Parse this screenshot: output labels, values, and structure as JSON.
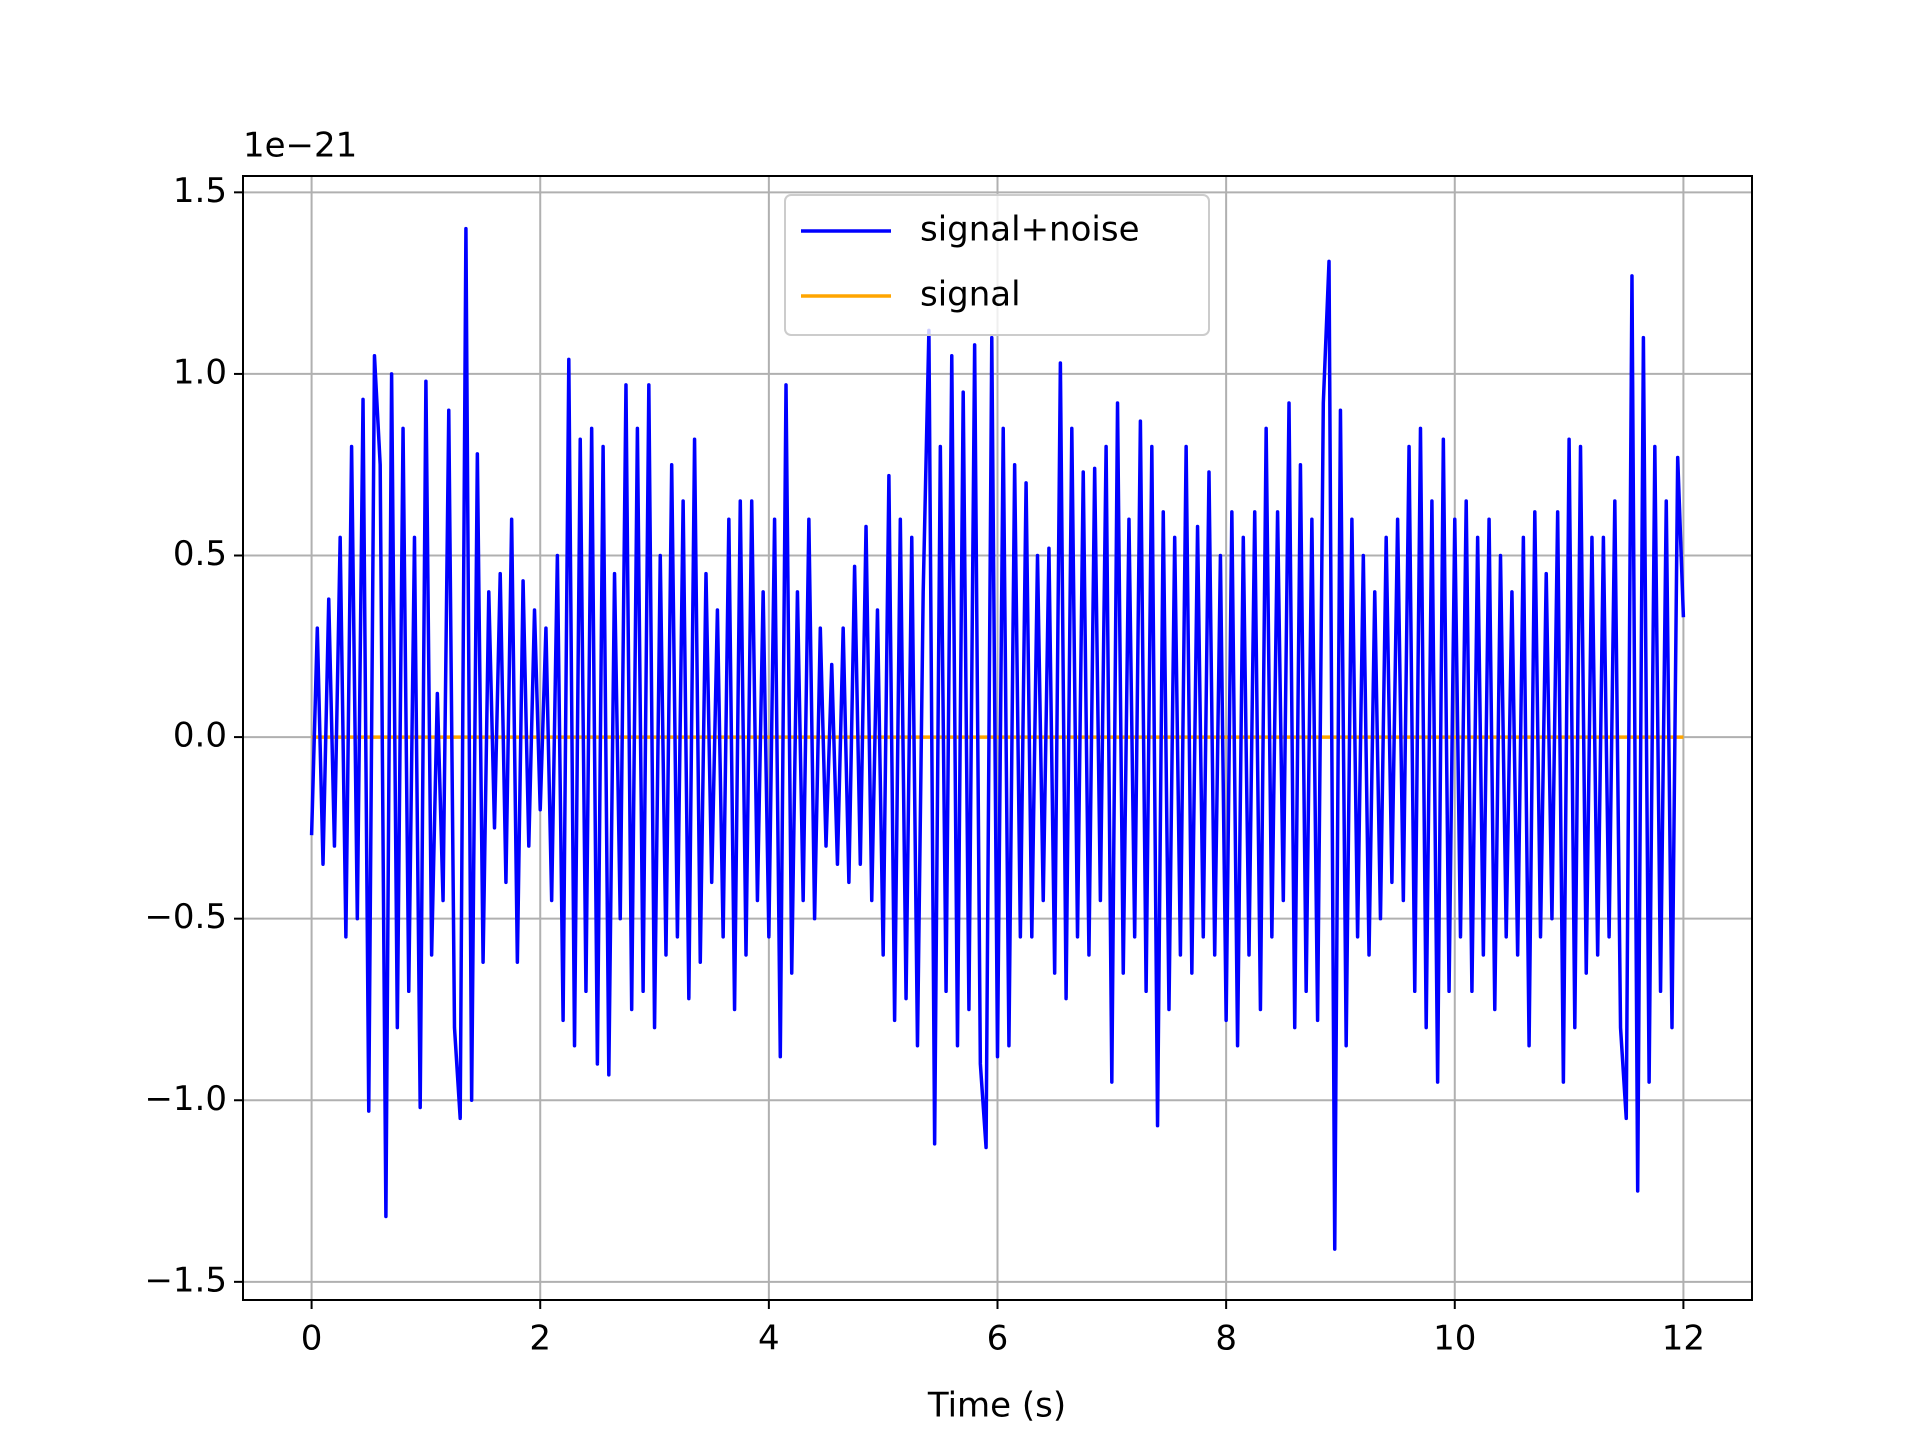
{
  "chart_data": {
    "type": "line",
    "offset_text": "1e−21",
    "x_label": "Time (s)",
    "xlim": [
      -0.6,
      12.6
    ],
    "xticks": [
      0,
      2,
      4,
      6,
      8,
      10,
      12
    ],
    "ylim": [
      -1.55,
      1.545
    ],
    "yticks": [
      {
        "value": -1.5,
        "label": "−1.5"
      },
      {
        "value": -1.0,
        "label": "−1.0"
      },
      {
        "value": -0.5,
        "label": "−0.5"
      },
      {
        "value": 0.0,
        "label": "0.0"
      },
      {
        "value": 0.5,
        "label": "0.5"
      },
      {
        "value": 1.0,
        "label": "1.0"
      },
      {
        "value": 1.5,
        "label": "1.5"
      }
    ],
    "grid": true,
    "legend": "upper center",
    "series": [
      {
        "name": "signal+noise",
        "color": "#0000ff",
        "x": [
          0,
          0.05,
          0.1,
          0.15,
          0.2,
          0.25,
          0.3,
          0.35,
          0.4,
          0.45,
          0.5,
          0.55,
          0.6,
          0.65,
          0.7,
          0.75,
          0.8,
          0.85,
          0.9,
          0.95,
          1,
          1.05,
          1.1,
          1.15,
          1.2,
          1.25,
          1.3,
          1.35,
          1.4,
          1.45,
          1.5,
          1.55,
          1.6,
          1.65,
          1.7,
          1.75,
          1.8,
          1.85,
          1.9,
          1.95,
          2,
          2.05,
          2.1,
          2.15,
          2.2,
          2.25,
          2.3,
          2.35,
          2.4,
          2.45,
          2.5,
          2.55,
          2.6,
          2.65,
          2.7,
          2.75,
          2.8,
          2.85,
          2.9,
          2.95,
          3,
          3.05,
          3.1,
          3.15,
          3.2,
          3.25,
          3.3,
          3.35,
          3.4,
          3.45,
          3.5,
          3.55,
          3.6,
          3.65,
          3.7,
          3.75,
          3.8,
          3.85,
          3.9,
          3.95,
          4,
          4.05,
          4.1,
          4.15,
          4.2,
          4.25,
          4.3,
          4.35,
          4.4,
          4.45,
          4.5,
          4.55,
          4.6,
          4.65,
          4.7,
          4.75,
          4.8,
          4.85,
          4.9,
          4.95,
          5,
          5.05,
          5.1,
          5.15,
          5.2,
          5.25,
          5.3,
          5.35,
          5.4,
          5.45,
          5.5,
          5.55,
          5.6,
          5.65,
          5.7,
          5.75,
          5.8,
          5.85,
          5.9,
          5.95,
          6,
          6.05,
          6.1,
          6.15,
          6.2,
          6.25,
          6.3,
          6.35,
          6.4,
          6.45,
          6.5,
          6.55,
          6.6,
          6.65,
          6.7,
          6.75,
          6.8,
          6.85,
          6.9,
          6.95,
          7,
          7.05,
          7.1,
          7.15,
          7.2,
          7.25,
          7.3,
          7.35,
          7.4,
          7.45,
          7.5,
          7.55,
          7.6,
          7.65,
          7.7,
          7.75,
          7.8,
          7.85,
          7.9,
          7.95,
          8,
          8.05,
          8.1,
          8.15,
          8.2,
          8.25,
          8.3,
          8.35,
          8.4,
          8.45,
          8.5,
          8.55,
          8.6,
          8.65,
          8.7,
          8.75,
          8.8,
          8.85,
          8.9,
          8.95,
          9,
          9.05,
          9.1,
          9.15,
          9.2,
          9.25,
          9.3,
          9.35,
          9.4,
          9.45,
          9.5,
          9.55,
          9.6,
          9.65,
          9.7,
          9.75,
          9.8,
          9.85,
          9.9,
          9.95,
          10,
          10.05,
          10.1,
          10.15,
          10.2,
          10.25,
          10.3,
          10.35,
          10.4,
          10.45,
          10.5,
          10.55,
          10.6,
          10.65,
          10.7,
          10.75,
          10.8,
          10.85,
          10.9,
          10.95,
          11,
          11.05,
          11.1,
          11.15,
          11.2,
          11.25,
          11.3,
          11.35,
          11.4,
          11.45,
          11.5,
          11.55,
          11.6,
          11.65,
          11.7,
          11.75,
          11.8,
          11.85,
          11.9,
          11.95,
          12
        ],
        "values": [
          -0.27,
          0.3,
          -0.35,
          0.38,
          -0.3,
          0.55,
          -0.55,
          0.8,
          -0.5,
          0.93,
          -1.03,
          1.05,
          0.75,
          -1.32,
          1.0,
          -0.8,
          0.85,
          -0.7,
          0.55,
          -1.02,
          0.98,
          -0.6,
          0.12,
          -0.45,
          0.9,
          -0.8,
          -1.05,
          1.4,
          -1.0,
          0.78,
          -0.62,
          0.4,
          -0.25,
          0.45,
          -0.4,
          0.6,
          -0.62,
          0.43,
          -0.3,
          0.35,
          -0.2,
          0.3,
          -0.45,
          0.5,
          -0.78,
          1.04,
          -0.85,
          0.82,
          -0.7,
          0.85,
          -0.9,
          0.8,
          -0.93,
          0.45,
          -0.5,
          0.97,
          -0.75,
          0.85,
          -0.7,
          0.97,
          -0.8,
          0.5,
          -0.6,
          0.75,
          -0.55,
          0.65,
          -0.72,
          0.82,
          -0.62,
          0.45,
          -0.4,
          0.35,
          -0.55,
          0.6,
          -0.75,
          0.65,
          -0.6,
          0.65,
          -0.45,
          0.4,
          -0.55,
          0.6,
          -0.88,
          0.97,
          -0.65,
          0.4,
          -0.45,
          0.6,
          -0.5,
          0.3,
          -0.3,
          0.2,
          -0.35,
          0.3,
          -0.4,
          0.47,
          -0.35,
          0.58,
          -0.45,
          0.35,
          -0.6,
          0.72,
          -0.78,
          0.6,
          -0.72,
          0.55,
          -0.85,
          0.4,
          1.12,
          -1.12,
          0.8,
          -0.7,
          1.05,
          -0.85,
          0.95,
          -0.75,
          1.08,
          -0.9,
          -1.13,
          1.1,
          -0.88,
          0.85,
          -0.85,
          0.75,
          -0.55,
          0.7,
          -0.55,
          0.5,
          -0.45,
          0.52,
          -0.65,
          1.03,
          -0.72,
          0.85,
          -0.55,
          0.73,
          -0.6,
          0.74,
          -0.45,
          0.8,
          -0.95,
          0.92,
          -0.65,
          0.6,
          -0.55,
          0.87,
          -0.7,
          0.8,
          -1.07,
          0.62,
          -0.75,
          0.55,
          -0.6,
          0.8,
          -0.65,
          0.58,
          -0.55,
          0.73,
          -0.6,
          0.5,
          -0.78,
          0.62,
          -0.85,
          0.55,
          -0.6,
          0.62,
          -0.75,
          0.85,
          -0.55,
          0.62,
          -0.45,
          0.92,
          -0.8,
          0.75,
          -0.7,
          0.6,
          -0.78,
          0.92,
          1.31,
          -1.41,
          0.9,
          -0.85,
          0.6,
          -0.55,
          0.5,
          -0.6,
          0.4,
          -0.5,
          0.55,
          -0.4,
          0.6,
          -0.45,
          0.8,
          -0.7,
          0.85,
          -0.8,
          0.65,
          -0.95,
          0.82,
          -0.7,
          0.6,
          -0.55,
          0.65,
          -0.7,
          0.55,
          -0.6,
          0.6,
          -0.75,
          0.5,
          -0.55,
          0.4,
          -0.6,
          0.55,
          -0.85,
          0.62,
          -0.55,
          0.45,
          -0.5,
          0.62,
          -0.95,
          0.82,
          -0.8,
          0.8,
          -0.65,
          0.55,
          -0.6,
          0.55,
          -0.55,
          0.65,
          -0.8,
          -1.05,
          1.27,
          -1.25,
          1.1,
          -0.95,
          0.8,
          -0.7,
          0.65,
          -0.8,
          0.77,
          0.33
        ]
      },
      {
        "name": "signal",
        "color": "#ffa500",
        "x": [
          0,
          12
        ],
        "values": [
          0,
          0
        ]
      }
    ]
  }
}
